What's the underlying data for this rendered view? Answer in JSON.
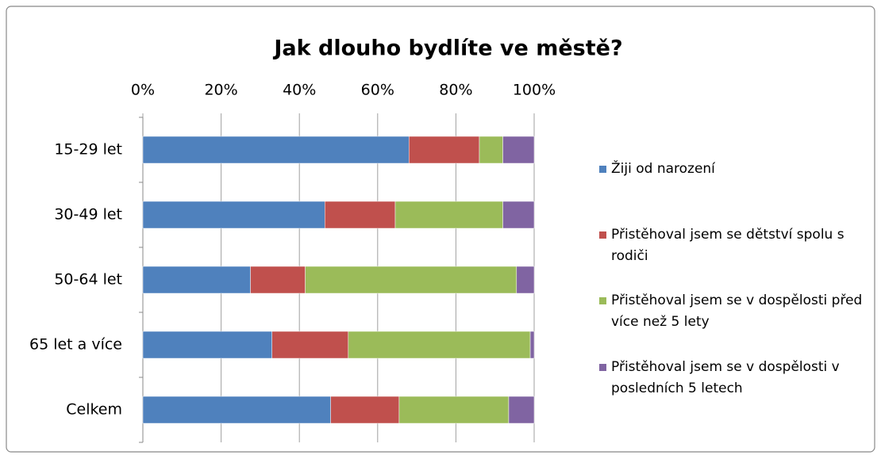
{
  "chart_data": {
    "type": "stacked_bar_horizontal",
    "title": "Jak dlouho bydlíte ve městě?",
    "categories": [
      "15-29 let",
      "30-49 let",
      "50-64 let",
      "65 let a více",
      "Celkem"
    ],
    "series": [
      {
        "name": "Žiji od narození",
        "color": "#4f81bd",
        "values": [
          68,
          46.5,
          27.5,
          33,
          48
        ]
      },
      {
        "name": "Přistěhoval jsem se dětství spolu s rodiči",
        "color": "#c0504d",
        "values": [
          18,
          18,
          14,
          19.5,
          17.5
        ]
      },
      {
        "name": "Přistěhoval jsem se v dospělosti před více než 5 lety",
        "color": "#9bbb59",
        "values": [
          6,
          27.5,
          54,
          46.5,
          28
        ]
      },
      {
        "name": "Přistěhoval jsem se v dospělosti v posledních 5 letech",
        "color": "#8064a2",
        "values": [
          8,
          8,
          4.5,
          1,
          6.5
        ]
      }
    ],
    "xlim": [
      0,
      100
    ],
    "xticks": [
      {
        "value": 0,
        "label": "0%"
      },
      {
        "value": 20,
        "label": "20%"
      },
      {
        "value": 40,
        "label": "40%"
      },
      {
        "value": 60,
        "label": "60%"
      },
      {
        "value": 80,
        "label": "80%"
      },
      {
        "value": 100,
        "label": "100%"
      }
    ],
    "grid": true,
    "legend": "right"
  }
}
